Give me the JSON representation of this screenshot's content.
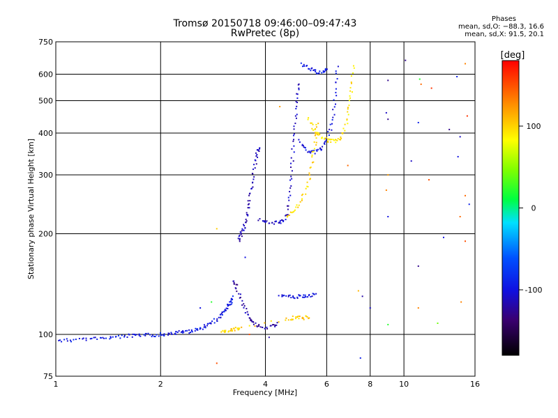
{
  "header": {
    "title": "Tromsø 20150718 09:46:00–09:47:43",
    "subtitle": "RwPretec (8p)",
    "stats_title": "Phases",
    "stats_o": "mean, sd,O: −88.3, 16.6",
    "stats_x": "mean, sd,X:  91.5, 20.1"
  },
  "colorbar": {
    "label": "[deg]",
    "min": -180,
    "max": 180,
    "ticks": [
      {
        "value": 100,
        "label": "100"
      },
      {
        "value": 0,
        "label": "0"
      },
      {
        "value": -100,
        "label": "-100"
      }
    ]
  },
  "chart_data": {
    "type": "scatter",
    "title": "Tromsø 20150718 09:46:00–09:47:43",
    "subtitle": "RwPretec (8p)",
    "xlabel": "Frequency [MHz]",
    "ylabel": "Stationary phase Virtual Height [km]",
    "x_scale": "log",
    "y_scale": "log",
    "xlim": [
      1,
      16
    ],
    "ylim": [
      75,
      750
    ],
    "grid": true,
    "x_gridlines": [
      2,
      4,
      6,
      8,
      10
    ],
    "y_gridlines": [
      100,
      200,
      300,
      400,
      500,
      600
    ],
    "x_ticks": [
      {
        "value": 1,
        "label": "1"
      },
      {
        "value": 2,
        "label": "2"
      },
      {
        "value": 4,
        "label": "4"
      },
      {
        "value": 6,
        "label": "6"
      },
      {
        "value": 8,
        "label": "8"
      },
      {
        "value": 10,
        "label": "10"
      },
      {
        "value": 16,
        "label": "16"
      }
    ],
    "y_ticks": [
      {
        "value": 75,
        "label": "75"
      },
      {
        "value": 100,
        "label": "100"
      },
      {
        "value": 200,
        "label": "200"
      },
      {
        "value": 300,
        "label": "300"
      },
      {
        "value": 400,
        "label": "400"
      },
      {
        "value": 500,
        "label": "500"
      },
      {
        "value": 600,
        "label": "600"
      },
      {
        "value": 750,
        "label": "750"
      }
    ],
    "color_by": "phase [deg]",
    "traces": [
      {
        "phase": -95,
        "points": [
          [
            1.02,
            96
          ],
          [
            1.1,
            96
          ],
          [
            1.2,
            97
          ],
          [
            1.3,
            97
          ],
          [
            1.4,
            98
          ],
          [
            1.5,
            98
          ],
          [
            1.6,
            99
          ],
          [
            1.7,
            99
          ],
          [
            1.8,
            99.5
          ],
          [
            1.9,
            99.5
          ],
          [
            2.0,
            100
          ],
          [
            2.1,
            100
          ],
          [
            2.2,
            101
          ],
          [
            2.3,
            101.5
          ],
          [
            2.4,
            102
          ],
          [
            2.5,
            103
          ],
          [
            2.6,
            104
          ],
          [
            2.7,
            106
          ],
          [
            2.8,
            108
          ],
          [
            2.9,
            111
          ],
          [
            3.0,
            114
          ],
          [
            3.05,
            117
          ],
          [
            3.1,
            120
          ],
          [
            3.15,
            123
          ],
          [
            3.2,
            126
          ],
          [
            3.25,
            130
          ]
        ]
      },
      {
        "phase": -120,
        "points": [
          [
            3.25,
            145
          ],
          [
            3.3,
            138
          ],
          [
            3.4,
            128
          ],
          [
            3.5,
            118
          ],
          [
            3.6,
            112
          ],
          [
            3.7,
            108
          ],
          [
            3.8,
            106
          ],
          [
            4.0,
            105
          ],
          [
            4.2,
            106
          ],
          [
            4.4,
            108
          ]
        ]
      },
      {
        "phase": -100,
        "points": [
          [
            4.4,
            130
          ],
          [
            4.6,
            130
          ],
          [
            4.8,
            129
          ],
          [
            5.0,
            130
          ],
          [
            5.2,
            130
          ],
          [
            5.4,
            131
          ],
          [
            5.6,
            131
          ]
        ]
      },
      {
        "phase": 100,
        "points": [
          [
            3.0,
            102
          ],
          [
            3.1,
            102
          ],
          [
            3.2,
            103
          ],
          [
            3.3,
            104
          ],
          [
            3.4,
            105
          ],
          [
            4.6,
            111
          ],
          [
            4.8,
            112
          ],
          [
            5.0,
            112
          ],
          [
            5.2,
            112
          ],
          [
            5.4,
            113
          ]
        ]
      },
      {
        "phase": -115,
        "points": [
          [
            3.35,
            192
          ],
          [
            3.4,
            198
          ],
          [
            3.45,
            205
          ],
          [
            3.5,
            215
          ],
          [
            3.55,
            230
          ],
          [
            3.6,
            250
          ],
          [
            3.65,
            275
          ],
          [
            3.7,
            300
          ],
          [
            3.75,
            330
          ],
          [
            3.8,
            355
          ],
          [
            3.85,
            360
          ]
        ]
      },
      {
        "phase": -110,
        "points": [
          [
            3.85,
            220
          ],
          [
            4.0,
            218
          ],
          [
            4.2,
            216
          ],
          [
            4.4,
            215
          ],
          [
            4.5,
            218
          ],
          [
            4.6,
            230
          ],
          [
            4.7,
            260
          ],
          [
            4.75,
            300
          ],
          [
            4.8,
            350
          ],
          [
            4.85,
            400
          ],
          [
            4.9,
            460
          ],
          [
            4.95,
            520
          ],
          [
            5.0,
            570
          ]
        ]
      },
      {
        "phase": -100,
        "points": [
          [
            5.0,
            380
          ],
          [
            5.2,
            360
          ],
          [
            5.4,
            350
          ],
          [
            5.6,
            352
          ],
          [
            5.8,
            360
          ],
          [
            6.0,
            380
          ],
          [
            6.2,
            420
          ],
          [
            6.3,
            480
          ],
          [
            6.4,
            560
          ],
          [
            6.45,
            640
          ]
        ]
      },
      {
        "phase": 95,
        "points": [
          [
            4.6,
            225
          ],
          [
            4.8,
            232
          ],
          [
            5.0,
            245
          ],
          [
            5.2,
            265
          ],
          [
            5.35,
            295
          ],
          [
            5.45,
            330
          ],
          [
            5.55,
            370
          ],
          [
            5.6,
            400
          ],
          [
            5.65,
            430
          ]
        ]
      },
      {
        "phase": 90,
        "points": [
          [
            5.3,
            440
          ],
          [
            5.5,
            410
          ],
          [
            5.7,
            395
          ],
          [
            5.9,
            385
          ],
          [
            6.1,
            380
          ],
          [
            6.3,
            378
          ],
          [
            6.5,
            382
          ],
          [
            6.7,
            400
          ],
          [
            6.9,
            440
          ],
          [
            7.0,
            500
          ],
          [
            7.1,
            560
          ],
          [
            7.15,
            650
          ]
        ]
      },
      {
        "phase": -95,
        "points": [
          [
            5.1,
            640
          ],
          [
            5.3,
            625
          ],
          [
            5.5,
            615
          ],
          [
            5.7,
            608
          ],
          [
            5.9,
            612
          ],
          [
            6.0,
            625
          ]
        ]
      }
    ],
    "scattered": [
      {
        "x": 2.9,
        "y": 82,
        "phase": 150
      },
      {
        "x": 7.5,
        "y": 85,
        "phase": -90
      },
      {
        "x": 9.0,
        "y": 575,
        "phase": -130
      },
      {
        "x": 10.1,
        "y": 660,
        "phase": -130
      },
      {
        "x": 11.1,
        "y": 580,
        "phase": 20
      },
      {
        "x": 11.2,
        "y": 560,
        "phase": 140
      },
      {
        "x": 12.0,
        "y": 545,
        "phase": 160
      },
      {
        "x": 14.2,
        "y": 590,
        "phase": -90
      },
      {
        "x": 15.0,
        "y": 645,
        "phase": 130
      },
      {
        "x": 8.9,
        "y": 460,
        "phase": -110
      },
      {
        "x": 9.0,
        "y": 440,
        "phase": -130
      },
      {
        "x": 11.0,
        "y": 430,
        "phase": -90
      },
      {
        "x": 13.5,
        "y": 410,
        "phase": -130
      },
      {
        "x": 14.5,
        "y": 390,
        "phase": -110
      },
      {
        "x": 15.2,
        "y": 450,
        "phase": 160
      },
      {
        "x": 9.0,
        "y": 300,
        "phase": 120
      },
      {
        "x": 8.9,
        "y": 270,
        "phase": 130
      },
      {
        "x": 10.5,
        "y": 330,
        "phase": -110
      },
      {
        "x": 11.8,
        "y": 290,
        "phase": 150
      },
      {
        "x": 14.3,
        "y": 340,
        "phase": -100
      },
      {
        "x": 15.0,
        "y": 260,
        "phase": 140
      },
      {
        "x": 15.4,
        "y": 245,
        "phase": -90
      },
      {
        "x": 9.0,
        "y": 225,
        "phase": -100
      },
      {
        "x": 14.5,
        "y": 225,
        "phase": 140
      },
      {
        "x": 13.0,
        "y": 195,
        "phase": -100
      },
      {
        "x": 15.0,
        "y": 190,
        "phase": 150
      },
      {
        "x": 11.0,
        "y": 160,
        "phase": -130
      },
      {
        "x": 7.4,
        "y": 135,
        "phase": 110
      },
      {
        "x": 7.6,
        "y": 130,
        "phase": -120
      },
      {
        "x": 8.0,
        "y": 120,
        "phase": -110
      },
      {
        "x": 14.6,
        "y": 125,
        "phase": 130
      },
      {
        "x": 9.0,
        "y": 107,
        "phase": 20
      },
      {
        "x": 11.0,
        "y": 120,
        "phase": 130
      },
      {
        "x": 12.5,
        "y": 108,
        "phase": 40
      },
      {
        "x": 3.5,
        "y": 170,
        "phase": -100
      },
      {
        "x": 4.1,
        "y": 98,
        "phase": -120
      },
      {
        "x": 2.8,
        "y": 125,
        "phase": 20
      },
      {
        "x": 2.6,
        "y": 120,
        "phase": -100
      },
      {
        "x": 3.6,
        "y": 100,
        "phase": 150
      },
      {
        "x": 6.9,
        "y": 320,
        "phase": 140
      },
      {
        "x": 4.4,
        "y": 480,
        "phase": 120
      },
      {
        "x": 2.9,
        "y": 207,
        "phase": 100
      }
    ]
  }
}
